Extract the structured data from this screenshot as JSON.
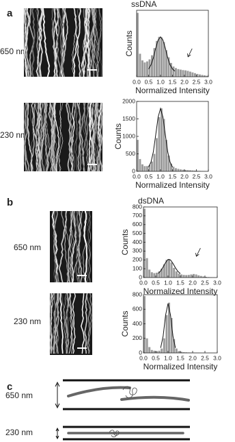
{
  "panel_labels": [
    "a",
    "b"
  ],
  "rows": [
    "650 nm",
    "230 nm",
    "650 nm",
    "230 nm"
  ],
  "panel_c": {
    "label": "c",
    "rows": [
      "650 nm",
      "230 nm"
    ]
  },
  "chart_data": [
    {
      "type": "histogram",
      "title": "ssDNA",
      "xlabel": "Normalized Intensity",
      "ylabel": "Counts",
      "color": "#9a9a9a",
      "bins": [
        0.0,
        0.1,
        0.2,
        0.3,
        0.4,
        0.5,
        0.6,
        0.7,
        0.8,
        0.9,
        1.0,
        1.1,
        1.2,
        1.3,
        1.4,
        1.5,
        1.6,
        1.7,
        1.8,
        1.9,
        2.0,
        2.1,
        2.2,
        2.3,
        2.4,
        2.5,
        2.6,
        2.7,
        2.8,
        2.9,
        3.0
      ],
      "values": [
        1250,
        450,
        320,
        280,
        300,
        340,
        420,
        560,
        700,
        780,
        770,
        680,
        520,
        380,
        270,
        200,
        170,
        150,
        140,
        130,
        125,
        115,
        100,
        85,
        70,
        55,
        45,
        35,
        28,
        20
      ],
      "fit": {
        "x": [
          0.5,
          0.6,
          0.7,
          0.8,
          0.9,
          1.0,
          1.1,
          1.2,
          1.3,
          1.4,
          1.5,
          1.6
        ],
        "values": [
          150,
          230,
          370,
          560,
          720,
          780,
          720,
          560,
          370,
          230,
          150,
          110
        ]
      },
      "xlim": [
        0,
        3
      ],
      "ylim": [
        0,
        1300
      ],
      "xticks": [
        {
          "value": 0,
          "label": "0.0"
        },
        {
          "value": 0.5,
          "label": "0.5"
        },
        {
          "value": 1,
          "label": "1.0"
        },
        {
          "value": 1.5,
          "label": "1.5"
        },
        {
          "value": 2,
          "label": "2.0"
        },
        {
          "value": 2.5,
          "label": "2.5"
        },
        {
          "value": 3,
          "label": "3.0"
        }
      ],
      "yticks": []
    },
    {
      "type": "histogram",
      "xlabel": "Normalized Intensity",
      "ylabel": "Counts",
      "color": "#9a9a9a",
      "bins": [
        0.0,
        0.1,
        0.2,
        0.3,
        0.4,
        0.5,
        0.6,
        0.7,
        0.8,
        0.9,
        1.0,
        1.1,
        1.2,
        1.3,
        1.4,
        1.5,
        1.6,
        1.7,
        1.8,
        1.9,
        2.0,
        2.1,
        2.2,
        2.3,
        2.4,
        2.5,
        2.6,
        2.7,
        2.8,
        2.9,
        3.0
      ],
      "values": [
        900,
        350,
        200,
        150,
        150,
        180,
        280,
        500,
        950,
        1550,
        1800,
        1500,
        900,
        450,
        220,
        130,
        90,
        70,
        55,
        45,
        40,
        35,
        30,
        25,
        20,
        15,
        12,
        10,
        8,
        5
      ],
      "fit": {
        "x": [
          0.5,
          0.6,
          0.7,
          0.8,
          0.9,
          1.0,
          1.1,
          1.2,
          1.3,
          1.4,
          1.5
        ],
        "values": [
          120,
          260,
          560,
          1050,
          1550,
          1800,
          1550,
          1050,
          560,
          260,
          120
        ]
      },
      "xlim": [
        0,
        3
      ],
      "ylim": [
        0,
        2000
      ],
      "xticks": [
        {
          "value": 0,
          "label": "0.0"
        },
        {
          "value": 0.5,
          "label": "0.5"
        },
        {
          "value": 1,
          "label": "1.0"
        },
        {
          "value": 1.5,
          "label": "1.5"
        },
        {
          "value": 2,
          "label": "2.0"
        },
        {
          "value": 2.5,
          "label": "2.5"
        },
        {
          "value": 3,
          "label": "3.0"
        }
      ],
      "yticks": [
        0,
        500,
        1000,
        1500,
        2000
      ]
    },
    {
      "type": "histogram",
      "title": "dsDNA",
      "xlabel": "Normalized Intensity",
      "ylabel": "Counts",
      "color": "#9a9a9a",
      "bins": [
        0.0,
        0.1,
        0.2,
        0.3,
        0.4,
        0.5,
        0.6,
        0.7,
        0.8,
        0.9,
        1.0,
        1.1,
        1.2,
        1.3,
        1.4,
        1.5,
        1.6,
        1.7,
        1.8,
        1.9,
        2.0,
        2.1,
        2.2,
        2.3,
        2.4,
        2.5,
        2.6,
        2.7,
        2.8,
        2.9,
        3.0
      ],
      "values": [
        780,
        220,
        90,
        60,
        50,
        55,
        70,
        100,
        150,
        200,
        210,
        170,
        110,
        70,
        45,
        35,
        30,
        28,
        30,
        35,
        40,
        35,
        25,
        18,
        12,
        8,
        5,
        3,
        2,
        1
      ],
      "fit": {
        "x": [
          0.6,
          0.7,
          0.8,
          0.9,
          1.0,
          1.1,
          1.2,
          1.3,
          1.4,
          1.5
        ],
        "values": [
          45,
          75,
          120,
          170,
          205,
          200,
          160,
          110,
          70,
          45
        ]
      },
      "xlim": [
        0,
        3
      ],
      "ylim": [
        0,
        800
      ],
      "xticks": [
        {
          "value": 0,
          "label": "0.0"
        },
        {
          "value": 0.5,
          "label": "0.5"
        },
        {
          "value": 1,
          "label": "1.0"
        },
        {
          "value": 1.5,
          "label": "1.5"
        },
        {
          "value": 2,
          "label": "2.0"
        },
        {
          "value": 2.5,
          "label": "2.5"
        },
        {
          "value": 3,
          "label": "3.0"
        }
      ],
      "yticks": [
        0,
        100,
        200,
        300,
        400,
        500,
        600,
        700,
        800
      ]
    },
    {
      "type": "histogram",
      "xlabel": "Normalized Intensity",
      "ylabel": "Counts",
      "color": "#9a9a9a",
      "bins": [
        0.0,
        0.1,
        0.2,
        0.3,
        0.4,
        0.5,
        0.6,
        0.7,
        0.8,
        0.9,
        1.0,
        1.1,
        1.2,
        1.3,
        1.4,
        1.5,
        1.6,
        1.7,
        1.8,
        1.9,
        2.0,
        2.1,
        2.2,
        2.3,
        2.4,
        2.5,
        2.6,
        2.7,
        2.8,
        2.9,
        3.0
      ],
      "values": [
        780,
        200,
        80,
        40,
        30,
        25,
        30,
        60,
        200,
        520,
        690,
        480,
        190,
        60,
        25,
        15,
        10,
        8,
        6,
        5,
        5,
        4,
        3,
        2,
        2,
        1,
        1,
        1,
        0,
        0
      ],
      "fit": {
        "x": [
          0.7,
          0.8,
          0.9,
          1.0,
          1.1,
          1.2,
          1.3
        ],
        "values": [
          70,
          230,
          520,
          680,
          520,
          230,
          70
        ]
      },
      "xlim": [
        0,
        3
      ],
      "ylim": [
        0,
        800
      ],
      "xticks": [
        {
          "value": 0,
          "label": "0.0"
        },
        {
          "value": 0.5,
          "label": "0.5"
        },
        {
          "value": 1,
          "label": "1.0"
        },
        {
          "value": 1.5,
          "label": "1.5"
        },
        {
          "value": 2,
          "label": "2.0"
        },
        {
          "value": 2.5,
          "label": "2.5"
        },
        {
          "value": 3,
          "label": "3.0"
        }
      ],
      "yticks": [
        0,
        200,
        400,
        600,
        800
      ]
    }
  ]
}
